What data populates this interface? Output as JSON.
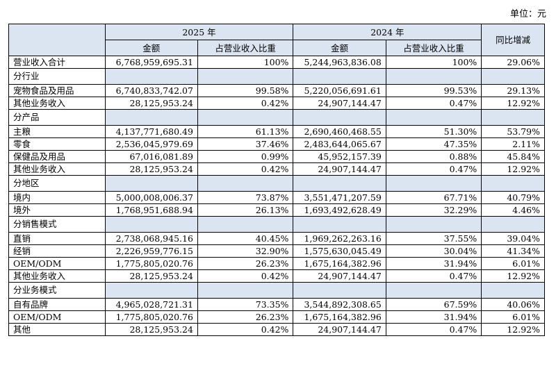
{
  "unit_label": "单位：元",
  "header": {
    "year_2025": "2025 年",
    "year_2024": "2024 年",
    "yoy": "同比增减",
    "amount": "金额",
    "share": "占营业收入比重"
  },
  "total": {
    "label": "营业收入合计",
    "v2025": "6,768,959,695.31",
    "p2025": "100%",
    "v2024": "5,244,963,836.08",
    "p2024": "100%",
    "yoy": "29.06%"
  },
  "sections": [
    {
      "title": "分行业",
      "rows": [
        {
          "label": "宠物食品及用品",
          "v2025": "6,740,833,742.07",
          "p2025": "99.58%",
          "v2024": "5,220,056,691.61",
          "p2024": "99.53%",
          "yoy": "29.13%"
        },
        {
          "label": "其他业务收入",
          "v2025": "28,125,953.24",
          "p2025": "0.42%",
          "v2024": "24,907,144.47",
          "p2024": "0.47%",
          "yoy": "12.92%"
        }
      ]
    },
    {
      "title": "分产品",
      "rows": [
        {
          "label": "主粮",
          "v2025": "4,137,771,680.49",
          "p2025": "61.13%",
          "v2024": "2,690,460,468.55",
          "p2024": "51.30%",
          "yoy": "53.79%"
        },
        {
          "label": "零食",
          "v2025": "2,536,045,979.69",
          "p2025": "37.46%",
          "v2024": "2,483,644,065.67",
          "p2024": "47.35%",
          "yoy": "2.11%"
        },
        {
          "label": "保健品及用品",
          "v2025": "67,016,081.89",
          "p2025": "0.99%",
          "v2024": "45,952,157.39",
          "p2024": "0.88%",
          "yoy": "45.84%"
        },
        {
          "label": "其他业务收入",
          "v2025": "28,125,953.24",
          "p2025": "0.42%",
          "v2024": "24,907,144.47",
          "p2024": "0.47%",
          "yoy": "12.92%"
        }
      ]
    },
    {
      "title": "分地区",
      "rows": [
        {
          "label": "境内",
          "v2025": "5,000,008,006.37",
          "p2025": "73.87%",
          "v2024": "3,551,471,207.59",
          "p2024": "67.71%",
          "yoy": "40.79%"
        },
        {
          "label": "境外",
          "v2025": "1,768,951,688.94",
          "p2025": "26.13%",
          "v2024": "1,693,492,628.49",
          "p2024": "32.29%",
          "yoy": "4.46%"
        }
      ]
    },
    {
      "title": "分销售模式",
      "rows": [
        {
          "label": "直销",
          "v2025": "2,738,068,945.16",
          "p2025": "40.45%",
          "v2024": "1,969,262,263.16",
          "p2024": "37.55%",
          "yoy": "39.04%"
        },
        {
          "label": "经销",
          "v2025": "2,226,959,776.15",
          "p2025": "32.90%",
          "v2024": "1,575,630,045.49",
          "p2024": "30.04%",
          "yoy": "41.34%"
        },
        {
          "label": "OEM/ODM",
          "v2025": "1,775,805,020.76",
          "p2025": "26.23%",
          "v2024": "1,675,164,382.96",
          "p2024": "31.94%",
          "yoy": "6.01%"
        },
        {
          "label": "其他业务收入",
          "v2025": "28,125,953.24",
          "p2025": "0.42%",
          "v2024": "24,907,144.47",
          "p2024": "0.47%",
          "yoy": "12.92%"
        }
      ]
    },
    {
      "title": "分业务模式",
      "rows": [
        {
          "label": "自有品牌",
          "v2025": "4,965,028,721.31",
          "p2025": "73.35%",
          "v2024": "3,544,892,308.65",
          "p2024": "67.59%",
          "yoy": "40.06%"
        },
        {
          "label": "OEM/ODM",
          "v2025": "1,775,805,020.76",
          "p2025": "26.23%",
          "v2024": "1,675,164,382.96",
          "p2024": "31.94%",
          "yoy": "6.01%"
        },
        {
          "label": "其他",
          "v2025": "28,125,953.24",
          "p2025": "0.42%",
          "v2024": "24,907,144.47",
          "p2024": "0.47%",
          "yoy": "12.92%"
        }
      ]
    }
  ]
}
